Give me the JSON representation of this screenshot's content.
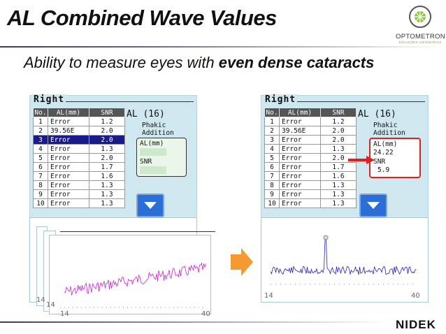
{
  "slide": {
    "title": "AL Combined Wave Values",
    "subtitle_plain": "Ability to measure eyes with ",
    "subtitle_bold": "even dense cataracts",
    "logo_name": "OPTOMETRON",
    "logo_tag": "SOLUÇÕES VISIONÁRIAS",
    "brand": "NIDEK"
  },
  "panels": {
    "eye_label": "Right",
    "headers": [
      "No.",
      "AL(mm)",
      "SNR"
    ],
    "rows": [
      {
        "no": "1",
        "al": "Error",
        "snr": "1.2"
      },
      {
        "no": "2",
        "al": "39.56E",
        "snr": "2.0"
      },
      {
        "no": "3",
        "al": "Error",
        "snr": "2.0"
      },
      {
        "no": "4",
        "al": "Error",
        "snr": "1.3"
      },
      {
        "no": "5",
        "al": "Error",
        "snr": "2.0"
      },
      {
        "no": "6",
        "al": "Error",
        "snr": "1.7"
      },
      {
        "no": "7",
        "al": "Error",
        "snr": "1.6"
      },
      {
        "no": "8",
        "al": "Error",
        "snr": "1.3"
      },
      {
        "no": "9",
        "al": "Error",
        "snr": "1.3"
      },
      {
        "no": "10",
        "al": "Error",
        "snr": "1.3"
      }
    ],
    "left_selected_row": 3,
    "al_heading": "AL (16)",
    "mode1": "Phakic",
    "mode2": "Addition",
    "al_label": "AL(mm)",
    "snr_label": "SNR",
    "result_al": "24.22",
    "result_snr": "5.9"
  },
  "waves": {
    "left_axis_min": "14",
    "left_axis_max": "40",
    "left_stack_label1": "14",
    "left_stack_label2": "14",
    "right_axis_min": "14",
    "right_axis_max": "40"
  },
  "colors": {
    "selected_row": "#1a1a8a",
    "left_wave": "#d020c8",
    "right_wave": "#2020c0",
    "arrow": "#f59a30",
    "highlight": "#e02020"
  }
}
